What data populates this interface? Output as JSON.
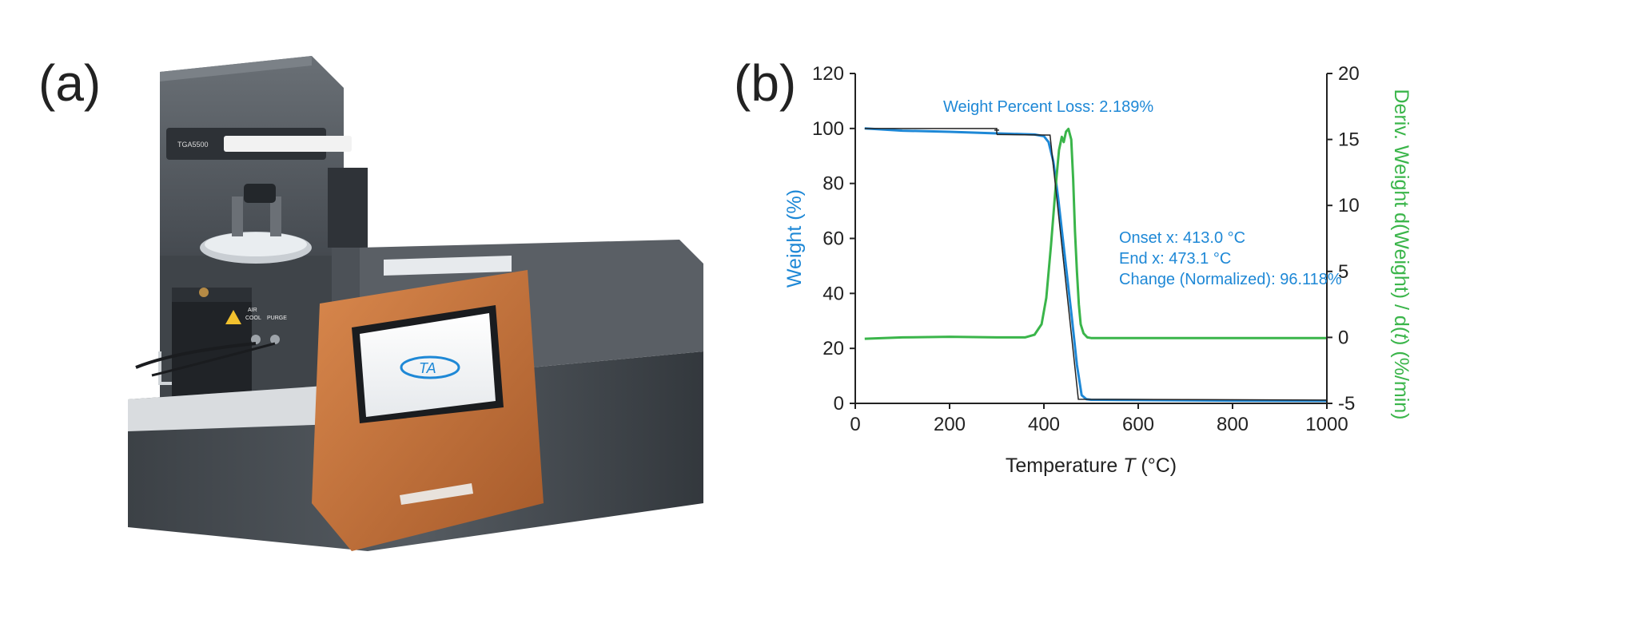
{
  "panels": {
    "a_label": "(a)",
    "b_label": "(b)"
  },
  "instrument": {
    "model_label": "TGA5500",
    "logo_text": "TA",
    "port_label_1": "AIR",
    "port_label_2": "COOL",
    "port_label_3": "PURGE"
  },
  "colors": {
    "weight": "#1e88d6",
    "deriv": "#3ab54a",
    "axis": "#222222",
    "ann_line": "#222222",
    "orange": "#c8713a"
  },
  "chart_data": {
    "type": "line",
    "xlabel_main": "Temperature ",
    "xlabel_italic": "T",
    "xlabel_unit": " (°C)",
    "ylabel_left": "Weight (%)",
    "ylabel_right_parts": [
      "Deriv. Weight d(Weight) / d(",
      "t",
      ") (%/min)"
    ],
    "xlim": [
      0,
      1000
    ],
    "ylim_left": [
      0,
      120
    ],
    "ylim_right": [
      -5,
      20
    ],
    "xticks": [
      0,
      200,
      400,
      600,
      800,
      1000
    ],
    "yticks_left": [
      0,
      20,
      40,
      60,
      80,
      100,
      120
    ],
    "yticks_right": [
      -5,
      0,
      5,
      10,
      15,
      20
    ],
    "grid": false,
    "series": [
      {
        "axis": "left",
        "x": [
          20,
          100,
          200,
          300,
          380,
          400,
          410,
          420,
          430,
          440,
          450,
          460,
          470,
          480,
          490,
          500,
          600,
          800,
          1000
        ],
        "values": [
          100,
          99.2,
          98.8,
          98.2,
          97.8,
          97.2,
          95,
          88,
          75,
          60,
          45,
          30,
          14,
          3,
          1.5,
          1.3,
          1.2,
          1.0,
          0.9
        ]
      },
      {
        "axis": "right",
        "x": [
          20,
          100,
          200,
          300,
          360,
          380,
          395,
          405,
          415,
          425,
          432,
          438,
          442,
          447,
          452,
          458,
          462,
          466,
          470,
          474,
          478,
          484,
          492,
          500,
          600,
          800,
          1000
        ],
        "values": [
          -0.1,
          0.0,
          0.05,
          0.0,
          0.0,
          0.2,
          1.0,
          3.0,
          7.0,
          11.5,
          14.2,
          15.2,
          14.8,
          15.6,
          15.8,
          15.0,
          12.0,
          8.0,
          5.0,
          2.5,
          1.0,
          0.3,
          0.0,
          -0.05,
          -0.05,
          -0.05,
          -0.05
        ]
      }
    ],
    "annotations": {
      "weight_loss": "Weight Percent Loss: 2.189%",
      "onset": "Onset x: 413.0 °C",
      "end": "End x: 473.1 °C",
      "change": "Change (Normalized): 96.118%"
    }
  }
}
